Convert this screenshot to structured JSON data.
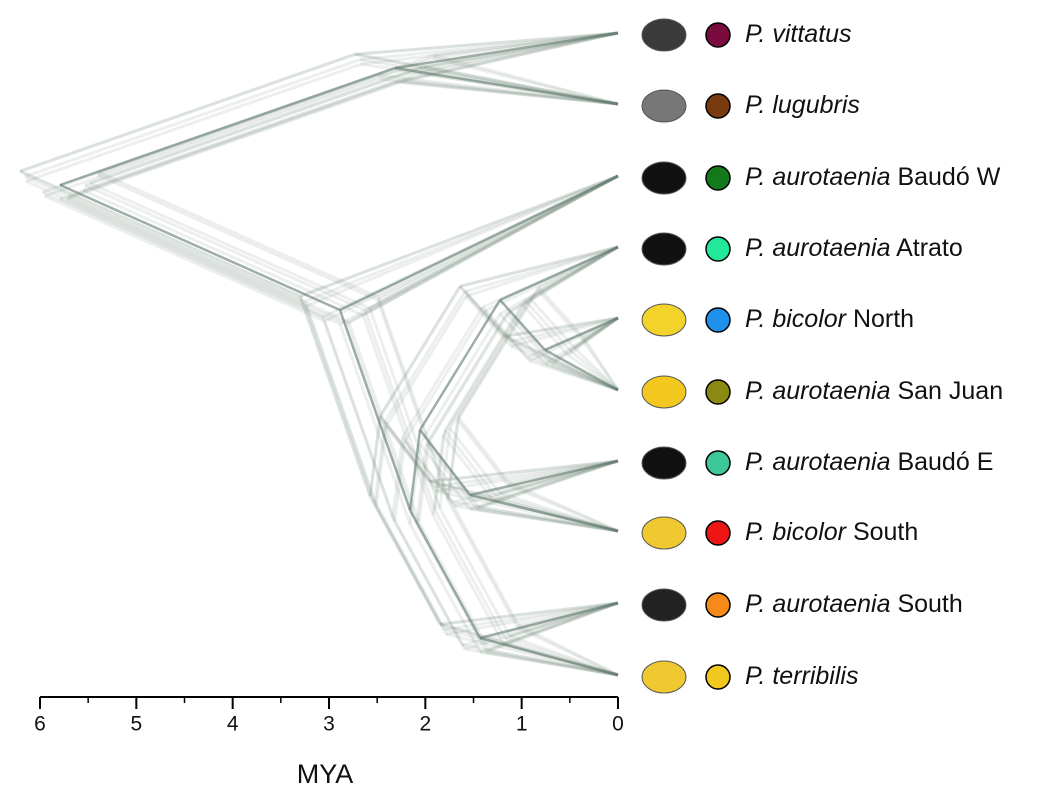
{
  "axis": {
    "label": "MYA",
    "xlim": [
      6,
      0
    ],
    "ticks": [
      6,
      5,
      4,
      3,
      2,
      1,
      0
    ]
  },
  "taxa": [
    {
      "italic": "P. vittatus",
      "color": "#7a0b3e"
    },
    {
      "italic": "P. lugubris",
      "color": "#7a3a10"
    },
    {
      "italic": "P. aurotaenia",
      "plain": "Baudó W",
      "color": "#137a1b"
    },
    {
      "italic": "P. aurotaenia",
      "plain": "Atrato",
      "color": "#22e89a"
    },
    {
      "italic": "P. bicolor",
      "plain": "North",
      "color": "#1e90ee"
    },
    {
      "italic": "P. aurotaenia",
      "plain": "San Juan",
      "color": "#8a8a12"
    },
    {
      "italic": "P. aurotaenia",
      "plain": "Baudó E",
      "color": "#3ec89a"
    },
    {
      "italic": "P. bicolor",
      "plain": "South",
      "color": "#ee1515"
    },
    {
      "italic": "P. aurotaenia",
      "plain": "South",
      "color": "#f58a1a"
    },
    {
      "italic": "P. terribilis",
      "color": "#f0c81e"
    }
  ]
}
